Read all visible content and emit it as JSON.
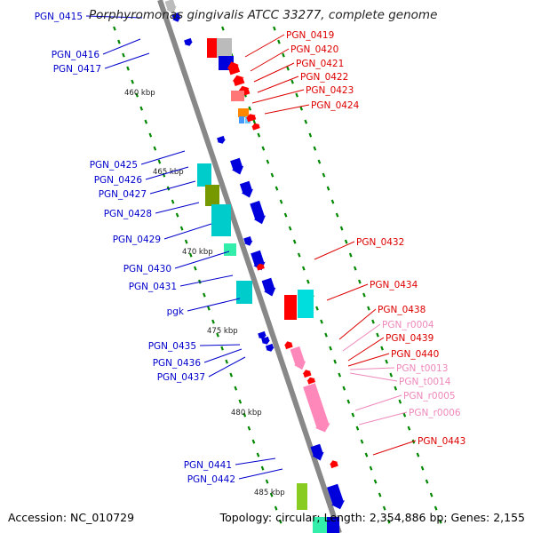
{
  "title": "Porphyromonas gingivalis ATCC 33277, complete genome",
  "footer": {
    "accession": "Accession: NC_010729",
    "topology": "Topology: circular; Length: 2,354,886 bp; Genes: 2,155"
  },
  "colors": {
    "protein_fwd": "#0000dd",
    "protein_rev": "#ff0000",
    "rna": "#ff88bb",
    "backbone": "#888888",
    "kbp_dot": "#008800"
  },
  "kbp_labels": [
    "460 kbp",
    "465 kbp",
    "470 kbp",
    "475 kbp",
    "480 kbp",
    "485 kbp"
  ],
  "left_genes": [
    {
      "label": "PGN_0415"
    },
    {
      "label": "PGN_0416"
    },
    {
      "label": "PGN_0417"
    },
    {
      "label": "PGN_0425"
    },
    {
      "label": "PGN_0426"
    },
    {
      "label": "PGN_0427"
    },
    {
      "label": "PGN_0428"
    },
    {
      "label": "PGN_0429"
    },
    {
      "label": "PGN_0430"
    },
    {
      "label": "PGN_0431"
    },
    {
      "label": "pgk"
    },
    {
      "label": "PGN_0435"
    },
    {
      "label": "PGN_0436"
    },
    {
      "label": "PGN_0437"
    },
    {
      "label": "PGN_0441"
    },
    {
      "label": "PGN_0442"
    }
  ],
  "right_genes": [
    {
      "label": "PGN_0419"
    },
    {
      "label": "PGN_0420"
    },
    {
      "label": "PGN_0421"
    },
    {
      "label": "PGN_0422"
    },
    {
      "label": "PGN_0423"
    },
    {
      "label": "PGN_0424"
    },
    {
      "label": "PGN_0432"
    },
    {
      "label": "PGN_0434"
    },
    {
      "label": "PGN_0438"
    },
    {
      "label": "PGN_r0004"
    },
    {
      "label": "PGN_0439"
    },
    {
      "label": "PGN_0440"
    },
    {
      "label": "PGN_t0013"
    },
    {
      "label": "PGN_t0014"
    },
    {
      "label": "PGN_r0005"
    },
    {
      "label": "PGN_r0006"
    },
    {
      "label": "PGN_0443"
    }
  ]
}
